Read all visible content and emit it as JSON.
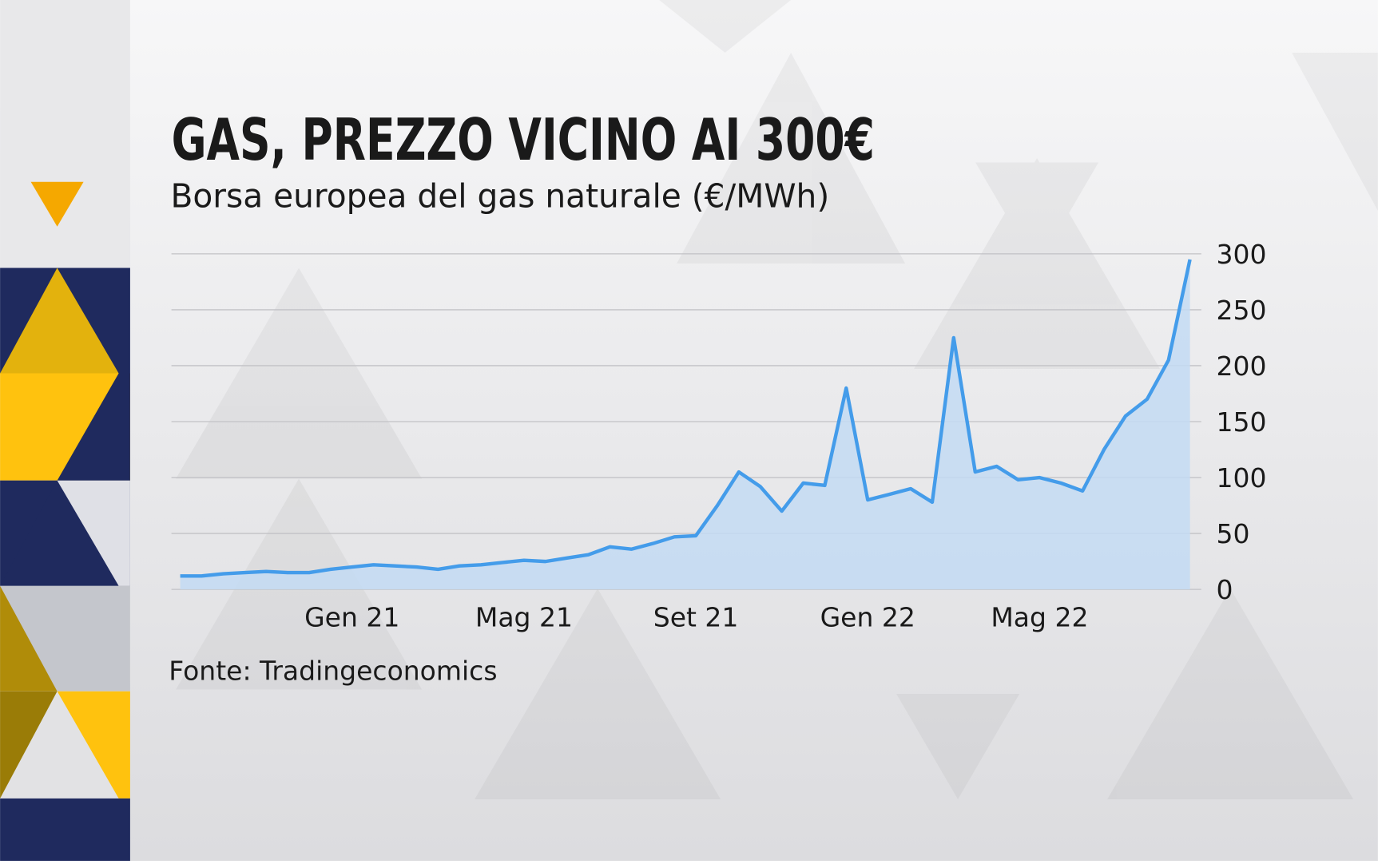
{
  "chart_data": {
    "type": "line",
    "title": "GAS, PREZZO VICINO AI 300€",
    "subtitle": "Borsa europea del gas naturale (€/MWh)",
    "source": "Fonte: Tradingeconomics",
    "categories": [
      null,
      null,
      null,
      null,
      null,
      null,
      null,
      null,
      "Gen 21",
      null,
      null,
      null,
      null,
      null,
      null,
      null,
      "Mag 21",
      null,
      null,
      null,
      null,
      null,
      null,
      null,
      "Set 21",
      null,
      null,
      null,
      null,
      null,
      null,
      null,
      "Gen 22",
      null,
      null,
      null,
      null,
      null,
      null,
      null,
      "Mag 22",
      null,
      null,
      null,
      null,
      null,
      null,
      null
    ],
    "values": [
      12,
      12,
      14,
      15,
      16,
      15,
      15,
      18,
      20,
      22,
      21,
      20,
      18,
      21,
      22,
      24,
      26,
      25,
      28,
      31,
      38,
      36,
      41,
      47,
      48,
      75,
      105,
      92,
      70,
      95,
      93,
      180,
      80,
      85,
      90,
      78,
      225,
      105,
      110,
      98,
      100,
      95,
      88,
      125,
      155,
      170,
      205,
      295
    ],
    "color": "#449cea",
    "area": true,
    "fill_color": "#c3daf3",
    "ylim": [
      0,
      300
    ],
    "yticks": [
      0,
      50,
      100,
      150,
      200,
      250,
      300
    ],
    "grid": true
  }
}
